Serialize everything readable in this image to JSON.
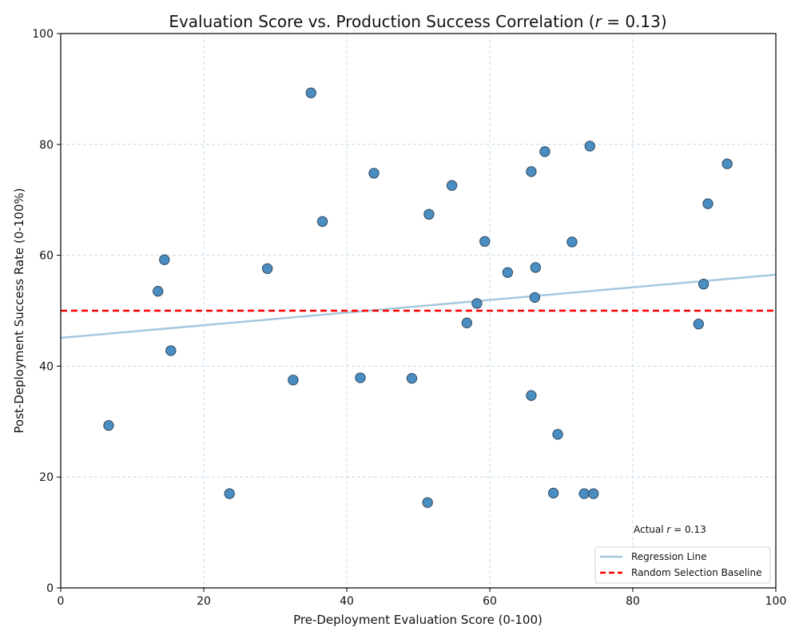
{
  "chart_data": {
    "type": "scatter",
    "title": "Evaluation Score vs. Production Success Correlation (r = 0.13)",
    "title_parts": {
      "prefix": "Evaluation Score vs. Production Success Correlation (",
      "var": "r",
      "suffix": " = 0.13)"
    },
    "xlabel": "Pre-Deployment Evaluation Score (0-100)",
    "ylabel": "Post-Deployment Success Rate (0-100%)",
    "xlim": [
      0,
      100
    ],
    "ylim": [
      0,
      100
    ],
    "xticks": [
      0,
      20,
      40,
      60,
      80,
      100
    ],
    "yticks": [
      0,
      20,
      40,
      60,
      80,
      100
    ],
    "xtick_labels": [
      "0",
      "20",
      "40",
      "60",
      "80",
      "100"
    ],
    "ytick_labels": [
      "0",
      "20",
      "40",
      "60",
      "80",
      "100"
    ],
    "grid": true,
    "points": {
      "x": [
        6.7,
        13.6,
        14.5,
        15.4,
        23.6,
        28.9,
        32.5,
        35.0,
        36.6,
        41.9,
        43.8,
        49.1,
        51.3,
        51.5,
        54.7,
        56.8,
        58.2,
        59.3,
        62.5,
        65.8,
        65.8,
        66.3,
        66.4,
        67.7,
        68.9,
        69.5,
        71.5,
        73.2,
        74.0,
        74.5,
        89.2,
        89.9,
        90.5,
        93.2
      ],
      "y": [
        29.3,
        53.5,
        59.2,
        42.8,
        17.0,
        57.6,
        37.5,
        89.3,
        66.1,
        37.9,
        74.8,
        37.8,
        15.4,
        67.4,
        72.6,
        47.8,
        51.3,
        62.5,
        56.9,
        34.7,
        75.1,
        52.4,
        57.8,
        78.7,
        17.1,
        27.7,
        62.4,
        17.0,
        79.7,
        17.0,
        47.6,
        54.8,
        69.3,
        76.5
      ]
    },
    "series": [
      {
        "name": "Regression Line",
        "type": "line",
        "x": [
          0,
          100
        ],
        "y": [
          45.1,
          56.5
        ],
        "color": "#a6c8de"
      },
      {
        "name": "Random Selection Baseline",
        "type": "hline",
        "y": 50,
        "color": "#ff0000",
        "style": "dashed"
      }
    ],
    "annotation": {
      "prefix": "Actual ",
      "var": "r",
      "suffix": " = 0.13",
      "x": 80,
      "y": 10
    },
    "legend": {
      "placement": "lower-right",
      "entries": [
        "Regression Line",
        "Random Selection Baseline"
      ]
    },
    "colors": {
      "point_fill": "#4a8dc1",
      "point_edge": "#2b3f55",
      "grid": "#b8d4e6",
      "regression": "#a6c8de",
      "baseline": "#ff0000"
    }
  }
}
